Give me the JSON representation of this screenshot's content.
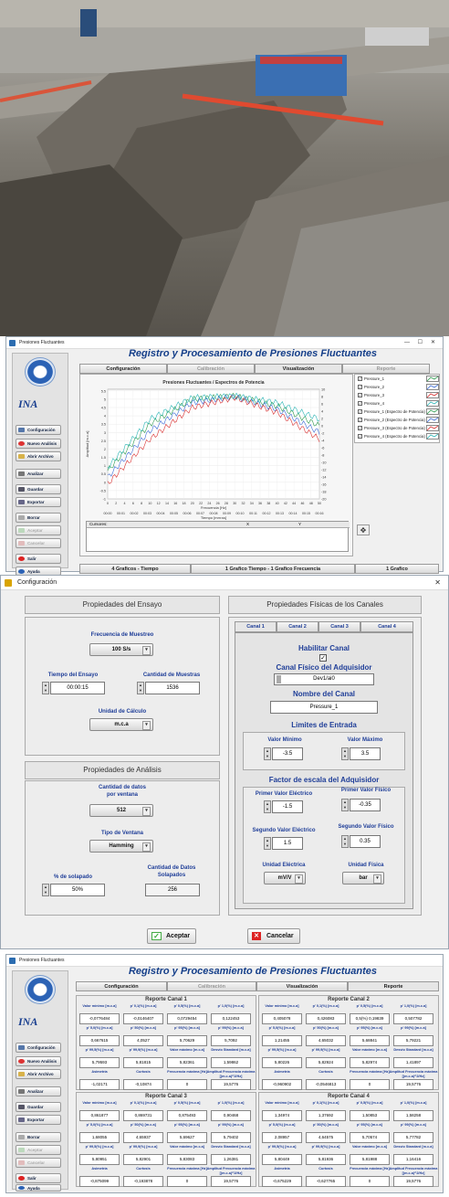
{
  "app": {
    "window_title": "Presiones Fluctuantes",
    "title": "Registro y Procesamiento de Presiones Fluctuantes",
    "tabs": [
      "Configuración",
      "Calibración",
      "Visualización",
      "Reporte"
    ],
    "sidebar": {
      "logo_text": "INA",
      "buttons": [
        "Configuración",
        "Nuevo Análisis",
        "Abrir Archivo",
        "Analizar",
        "Guardar",
        "Exportar",
        "Borrar",
        "Aceptar",
        "Cancelar",
        "Salir",
        "Ayuda"
      ]
    }
  },
  "visual": {
    "chart_title": "Presiones Fluctuantes / Espectros de Potencia",
    "xlabel_top": "Frecuencia [Hz]",
    "xlabel_bottom": "Tiempo [mm:ss]",
    "ylabel": "Amplitud [m.c.a]",
    "legend": [
      "Pressure_1",
      "Pressure_2",
      "Pressure_3",
      "Pressure_4",
      "Pressure_1 (Espectro de Potencia)",
      "Pressure_2 (Espectro de Potencia)",
      "Pressure_3 (Espectro de Potencia)",
      "Pressure_4 (Espectro de Potencia)"
    ],
    "cursor_headers": [
      "Cursores:",
      "X",
      "Y"
    ],
    "bottom_tabs": [
      "4 Graficos - Tiempo",
      "1 Grafico Tiempo - 1 Grafico Frecuencia",
      "1 Grafico"
    ]
  },
  "chart_data": {
    "type": "line",
    "title": "Presiones Fluctuantes / Espectros de Potencia",
    "xlabel": "Frecuencia [Hz]",
    "ylabel": "Amplitud [m.c.a]",
    "x_ticks_freq": [
      "0",
      "2",
      "4",
      "6",
      "8",
      "10",
      "12",
      "14",
      "16",
      "18",
      "20",
      "22",
      "24",
      "26",
      "28",
      "30",
      "32",
      "34",
      "36",
      "38",
      "40",
      "42",
      "44",
      "46",
      "48",
      "50"
    ],
    "x_ticks_time": [
      "00:00",
      "00:01",
      "00:02",
      "00:03",
      "00:04",
      "00:05",
      "00:06",
      "00:07",
      "00:08",
      "00:09",
      "00:10",
      "00:11",
      "00:12",
      "00:13",
      "00:14",
      "00:15",
      "00:16"
    ],
    "y_ticks_left": [
      "-1",
      "-0.5",
      "0",
      "0.5",
      "1",
      "1.5",
      "2",
      "2.5",
      "3",
      "3.5",
      "4",
      "4.5",
      "5",
      "5.5"
    ],
    "y_ticks_right": [
      "-20",
      "-18",
      "-16",
      "-14",
      "-12",
      "-10",
      "-8",
      "-6",
      "-4",
      "-2",
      "0",
      "2",
      "4",
      "6",
      "8",
      "10"
    ],
    "ylim": [
      -1,
      5.6
    ],
    "xlim": [
      0,
      50
    ],
    "series": [
      {
        "color": "#2f9b4f",
        "x": [
          0,
          10,
          20,
          30,
          40,
          50
        ],
        "y": [
          0.7,
          3.5,
          5.0,
          5.2,
          4.6,
          3.4
        ]
      },
      {
        "color": "#3b6bd6",
        "x": [
          0,
          10,
          20,
          30,
          40,
          50
        ],
        "y": [
          0.3,
          3.1,
          4.8,
          5.15,
          4.4,
          3.0
        ]
      },
      {
        "color": "#d93030",
        "x": [
          0,
          10,
          20,
          30,
          40,
          50
        ],
        "y": [
          -0.1,
          2.6,
          4.5,
          5.1,
          4.2,
          2.6
        ]
      },
      {
        "color": "#2cb6b6",
        "x": [
          0,
          10,
          20,
          30,
          40,
          50
        ],
        "y": [
          0.9,
          3.8,
          5.1,
          5.2,
          4.8,
          3.8
        ]
      }
    ]
  },
  "config": {
    "window_title": "Configuración",
    "ensayo_title": "Propiedades del Ensayo",
    "freq_label": "Frecuencia de Muestreo",
    "freq_value": "100 S/s",
    "tiempo_label": "Tiempo del Ensayo",
    "tiempo_value": "00:00:15",
    "cant_label": "Cantidad de Muestras",
    "cant_value": "1536",
    "unidad_label": "Unidad de Cálculo",
    "unidad_value": "m.c.a",
    "analisis_title": "Propiedades de Análisis",
    "datos_label1": "Cantidad de datos",
    "datos_label2": "por ventana",
    "datos_value": "512",
    "ventana_label": "Tipo de Ventana",
    "ventana_value": "Hamming",
    "solapado_label": "% de solapado",
    "solapado_value": "50%",
    "solap_datos_label1": "Cantidad de Datos",
    "solap_datos_label2": "Solapados",
    "solap_datos_value": "256",
    "canales_title": "Propiedades Físicas de los Canales",
    "canal_tabs": [
      "Canal 1",
      "Canal 2",
      "Canal 3",
      "Canal 4"
    ],
    "habilitar_label": "Habilitar Canal",
    "habilitar_check": "✓",
    "fisico_label": "Canal Físico del Adquisidor",
    "fisico_value": "Dev1/ai0",
    "nombre_label": "Nombre del Canal",
    "nombre_value": "Pressure_1",
    "limites_label": "Limites de Entrada",
    "min_label": "Valor Mínimo",
    "min_value": "-3.5",
    "max_label": "Valor Máximo",
    "max_value": "3.5",
    "factor_label": "Factor de escala del Adquisidor",
    "pve_label": "Primer Valor Eléctrico",
    "pve_value": "-1.5",
    "pvf_label": "Primer Valor Físico",
    "pvf_value": "-0.35",
    "sve_label": "Segundo Valor Eléctrico",
    "sve_value": "1.5",
    "svf_label": "Segundo Valor Físico",
    "svf_value": "0.35",
    "ue_label": "Unidad Eléctrica",
    "ue_value": "mV/V",
    "uf_label": "Unidad Física",
    "uf_value": "bar",
    "aceptar": "Aceptar",
    "cancelar": "Cancelar"
  },
  "report": {
    "labels": [
      [
        "Valor mínimo [m.c.a]",
        "p' 0,1(%) [m.c.a]",
        "p' 0,5(%) [m.c.a]",
        "p' 1,0(%) [m.c.a]"
      ],
      [
        "p' 5,0(%) [m.c.a]",
        "p' 50(%) [m.c.a]",
        "p' 95(%) [m.c.a]",
        "p' 99(%) [m.c.a]"
      ],
      [
        "p' 99,5(%) [m.c.a]",
        "p' 99,9(%) [m.c.a]",
        "Valor máximo [m.c.a]",
        "Desvío Standard [m.c.a]"
      ],
      [
        "Asimetría",
        "Curtosis",
        "Frecuencia máxima [Hz]",
        "Amplitud Frecuencia máxima [(m.c.a)^2/Hz]"
      ]
    ],
    "canales": [
      {
        "title": "Reporte Canal 1",
        "values": [
          [
            "-0,0776484",
            "-0,0146407",
            "0,0729454",
            "0,122453"
          ],
          [
            "0,667615",
            "4,0527",
            "5,70629",
            "5,7092"
          ],
          [
            "5,79593",
            "5,81815",
            "5,82361",
            "1,59862"
          ],
          [
            "-1,02171",
            "-0,10874",
            "0",
            "19,5776"
          ]
        ]
      },
      {
        "title": "Reporte Canal 2",
        "values": [
          [
            "0,405078",
            "0,426083",
            "0,5(%) 0,19839",
            "0,507782"
          ],
          [
            "1,21455",
            "4,65032",
            "5,68841",
            "5,79221"
          ],
          [
            "5,80226",
            "5,82924",
            "5,82974",
            "1,41897"
          ],
          [
            "-0,960902",
            "-0,0546813",
            "0",
            "19,5776"
          ]
        ]
      },
      {
        "title": "Reporte Canal 3",
        "values": [
          [
            "0,861877",
            "0,869731",
            "0,875493",
            "0,90468"
          ],
          [
            "1,68055",
            "4,65937",
            "5,69627",
            "5,79402"
          ],
          [
            "5,80951",
            "5,82901",
            "5,83083",
            "1,26381"
          ],
          [
            "-0,875099",
            "-0,193878",
            "0",
            "19,5776"
          ]
        ]
      },
      {
        "title": "Reporte Canal 4",
        "values": [
          [
            "1,34974",
            "1,37692",
            "1,50853",
            "1,58258"
          ],
          [
            "2,08957",
            "4,64575",
            "5,70574",
            "5,77782"
          ],
          [
            "5,80449",
            "5,81936",
            "5,81988",
            "1,16416"
          ],
          [
            "-0,675229",
            "-0,627765",
            "0",
            "19,5776"
          ]
        ]
      }
    ]
  },
  "colors": {
    "accent": "#153f8a",
    "label_blue": "#1f3e98"
  }
}
